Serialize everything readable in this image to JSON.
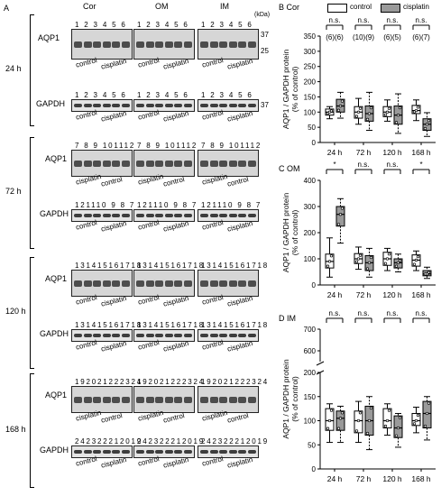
{
  "left": {
    "panel_label": "A",
    "col_headers": [
      "Cor",
      "OM",
      "IM"
    ],
    "unit": "(kDa)",
    "mw_aqp1": [
      "37",
      "25"
    ],
    "mw_gapdh": "37",
    "aqp1_label": "AQP1",
    "gapdh_label": "GAPDH",
    "groups": [
      {
        "time": "24 h",
        "aqp1_lanes": "1 2 3 4 5 6",
        "gapdh_lanes": "1 2 3 4 5 6",
        "aqp1_group_labels": [
          "control",
          "cisplatin"
        ],
        "gapdh_group_labels": [
          "control",
          "cisplatin"
        ]
      },
      {
        "time": "72 h",
        "aqp1_lanes": "7 8 9 101112",
        "gapdh_lanes": "121110 9 8 7",
        "aqp1_group_labels": [
          "cisplatin",
          "control"
        ],
        "gapdh_group_labels": [
          "control",
          "cisplatin"
        ]
      },
      {
        "time": "120 h",
        "aqp1_lanes": "131415161718",
        "gapdh_lanes": "131415161718",
        "aqp1_group_labels": [
          "control",
          "cisplatin"
        ],
        "gapdh_group_labels": [
          "control",
          "cisplatin"
        ]
      },
      {
        "time": "168 h",
        "aqp1_lanes": "192021222324",
        "gapdh_lanes": "242322212019",
        "aqp1_group_labels": [
          "cisplatin",
          "control"
        ],
        "gapdh_group_labels": [
          "control",
          "cisplatin"
        ]
      }
    ]
  },
  "right": {
    "legend": [
      "control",
      "cisplatin"
    ],
    "colors": {
      "control": "#ffffff",
      "cisplatin": "#9a9a9a"
    },
    "ylabel_line1": "AQP1 / GAPDH protein",
    "ylabel_line2": "(% of control)",
    "panels": [
      {
        "letter": "B",
        "region": "Cor"
      },
      {
        "letter": "C",
        "region": "OM"
      },
      {
        "letter": "D",
        "region": "IM"
      }
    ]
  },
  "chart_data": [
    {
      "type": "box",
      "title": "B Cor",
      "ylabel": "AQP1 / GAPDH protein (% of control)",
      "ylim": [
        0,
        350
      ],
      "yticks": [
        0,
        50,
        100,
        150,
        200,
        250,
        300,
        350
      ],
      "categories": [
        "24 h",
        "72 h",
        "120 h",
        "168 h"
      ],
      "significance": [
        "n.s.",
        "n.s.",
        "n.s.",
        "n.s."
      ],
      "n_labels": [
        "(6)(6)",
        "(10)(9)",
        "(6)(5)",
        "(6)(7)"
      ],
      "series": [
        {
          "name": "control",
          "boxes": [
            {
              "min": 78,
              "q1": 90,
              "median": 100,
              "q3": 110,
              "max": 118
            },
            {
              "min": 60,
              "q1": 80,
              "median": 100,
              "q3": 118,
              "max": 145
            },
            {
              "min": 70,
              "q1": 85,
              "median": 100,
              "q3": 118,
              "max": 140
            },
            {
              "min": 72,
              "q1": 95,
              "median": 105,
              "q3": 122,
              "max": 140
            }
          ]
        },
        {
          "name": "cisplatin",
          "boxes": [
            {
              "min": 80,
              "q1": 100,
              "median": 120,
              "q3": 142,
              "max": 165
            },
            {
              "min": 40,
              "q1": 70,
              "median": 95,
              "q3": 120,
              "max": 165
            },
            {
              "min": 30,
              "q1": 60,
              "median": 90,
              "q3": 120,
              "max": 160
            },
            {
              "min": 20,
              "q1": 40,
              "median": 60,
              "q3": 78,
              "max": 98
            }
          ]
        }
      ]
    },
    {
      "type": "box",
      "title": "C OM",
      "ylabel": "AQP1 / GAPDH protein (% of control)",
      "ylim": [
        0,
        400
      ],
      "yticks": [
        0,
        100,
        200,
        300,
        400
      ],
      "categories": [
        "24 h",
        "72 h",
        "120 h",
        "168 h"
      ],
      "significance": [
        "*",
        "n.s.",
        "n.s.",
        "*"
      ],
      "series": [
        {
          "name": "control",
          "boxes": [
            {
              "min": 30,
              "q1": 65,
              "median": 90,
              "q3": 118,
              "max": 180
            },
            {
              "min": 60,
              "q1": 82,
              "median": 100,
              "q3": 120,
              "max": 145
            },
            {
              "min": 55,
              "q1": 75,
              "median": 100,
              "q3": 125,
              "max": 140
            },
            {
              "min": 55,
              "q1": 72,
              "median": 95,
              "q3": 115,
              "max": 130
            }
          ]
        },
        {
          "name": "cisplatin",
          "boxes": [
            {
              "min": 160,
              "q1": 225,
              "median": 270,
              "q3": 300,
              "max": 330
            },
            {
              "min": 30,
              "q1": 55,
              "median": 85,
              "q3": 112,
              "max": 140
            },
            {
              "min": 50,
              "q1": 65,
              "median": 85,
              "q3": 100,
              "max": 118
            },
            {
              "min": 25,
              "q1": 35,
              "median": 42,
              "q3": 55,
              "max": 68
            }
          ]
        }
      ]
    },
    {
      "type": "box",
      "title": "D IM",
      "ylabel": "AQP1 / GAPDH protein (% of control)",
      "ylim": [
        0,
        700
      ],
      "yticks": [
        0,
        50,
        100,
        150,
        200,
        600,
        700
      ],
      "axis_break": [
        200,
        550
      ],
      "categories": [
        "24 h",
        "72 h",
        "120 h",
        "168 h"
      ],
      "significance": [
        "n.s.",
        "n.s.",
        "n.s.",
        "n.s."
      ],
      "series": [
        {
          "name": "control",
          "boxes": [
            {
              "min": 55,
              "q1": 80,
              "median": 100,
              "q3": 125,
              "max": 135
            },
            {
              "min": 55,
              "q1": 75,
              "median": 100,
              "q3": 120,
              "max": 140
            },
            {
              "min": 70,
              "q1": 85,
              "median": 100,
              "q3": 125,
              "max": 135
            },
            {
              "min": 75,
              "q1": 90,
              "median": 100,
              "q3": 115,
              "max": 128
            }
          ]
        },
        {
          "name": "cisplatin",
          "boxes": [
            {
              "min": 55,
              "q1": 80,
              "median": 105,
              "q3": 120,
              "max": 130
            },
            {
              "min": 40,
              "q1": 70,
              "median": 100,
              "q3": 130,
              "max": 150
            },
            {
              "min": 45,
              "q1": 65,
              "median": 85,
              "q3": 110,
              "max": 115
            },
            {
              "min": 60,
              "q1": 85,
              "median": 115,
              "q3": 140,
              "max": 150
            }
          ]
        }
      ]
    }
  ]
}
